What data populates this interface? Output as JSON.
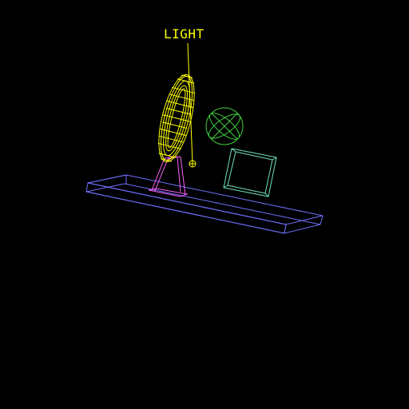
{
  "scene": {
    "light_label": "LIGHT",
    "background_color": "#000000",
    "colors": {
      "light": "#ffff00",
      "torus": "#ffff00",
      "platform": "#6f6fff",
      "stand": "#ff60ff",
      "sphere": "#40d040",
      "cube": "#70e0c0"
    },
    "objects": [
      "light-handle-icon",
      "torus-wireframe",
      "stand-wireframe",
      "sphere-wireframe",
      "cube-wireframe",
      "platform-wireframe"
    ]
  }
}
